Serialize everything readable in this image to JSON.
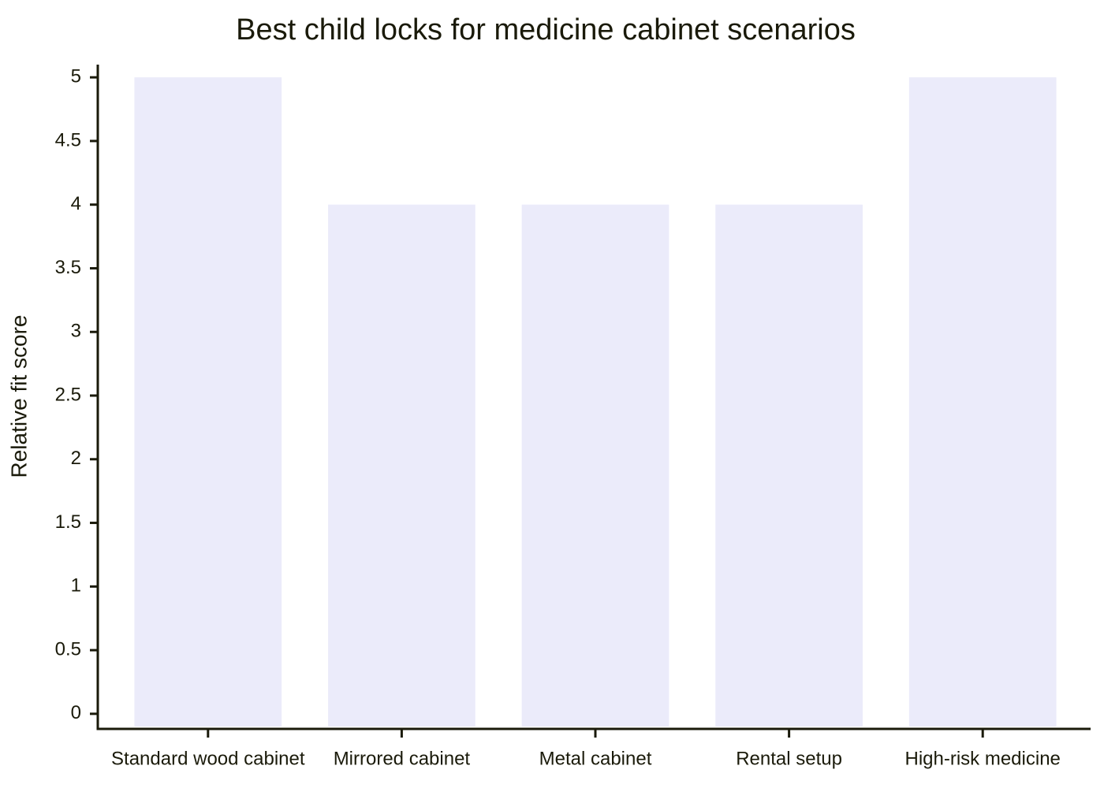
{
  "chart_data": {
    "type": "bar",
    "title": "Best child locks for medicine cabinet scenarios",
    "y_label": "Relative fit score",
    "categories": [
      "Standard wood cabinet",
      "Mirrored cabinet",
      "Metal cabinet",
      "Rental setup",
      "High-risk medicine"
    ],
    "values": [
      5,
      4,
      4,
      4,
      5
    ],
    "color": "#ebebfa",
    "ylim": [
      -0.1,
      5.1
    ],
    "yticks": [
      0,
      0.5,
      1,
      1.5,
      2,
      2.5,
      3,
      3.5,
      4,
      4.5,
      5
    ],
    "grid": false
  }
}
